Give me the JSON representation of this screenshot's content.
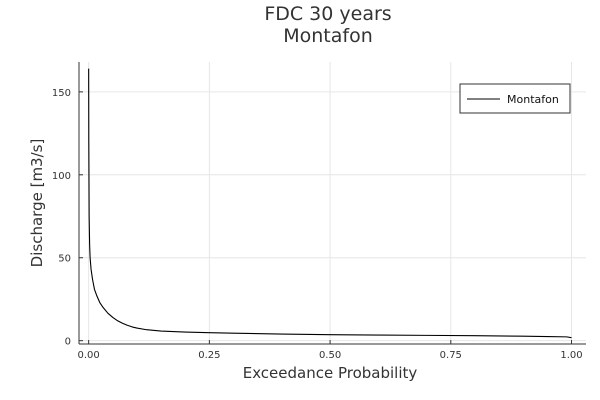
{
  "chart_data": {
    "type": "line",
    "title_lines": [
      "FDC 30 years",
      "Montafon"
    ],
    "xlabel": "Exceedance Probability",
    "ylabel": "Discharge [m3/s]",
    "xlim": [
      -0.02,
      1.03
    ],
    "ylim": [
      -2,
      168
    ],
    "x_ticks": [
      {
        "value": 0,
        "label": "0.00"
      },
      {
        "value": 0.25,
        "label": "0.25"
      },
      {
        "value": 0.5,
        "label": "0.50"
      },
      {
        "value": 0.75,
        "label": "0.75"
      },
      {
        "value": 1,
        "label": "1.00"
      }
    ],
    "y_ticks": [
      {
        "value": 0,
        "label": "0"
      },
      {
        "value": 50,
        "label": "50"
      },
      {
        "value": 100,
        "label": "100"
      },
      {
        "value": 150,
        "label": "150"
      }
    ],
    "grid": true,
    "legend_position": "top-right",
    "series": [
      {
        "name": "Montafon",
        "color": "#000000",
        "x": [
          0.0,
          0.0003,
          0.001,
          0.002,
          0.003,
          0.005,
          0.008,
          0.012,
          0.017,
          0.023,
          0.03,
          0.04,
          0.05,
          0.06,
          0.07,
          0.08,
          0.09,
          0.1,
          0.12,
          0.15,
          0.2,
          0.25,
          0.3,
          0.4,
          0.5,
          0.6,
          0.7,
          0.8,
          0.9,
          0.95,
          0.99,
          1.0
        ],
        "y": [
          164,
          120,
          75,
          58,
          50,
          43,
          37,
          31,
          27,
          23,
          20,
          16.5,
          14,
          12,
          10.5,
          9.3,
          8.3,
          7.6,
          6.6,
          5.8,
          5.2,
          4.8,
          4.5,
          4.0,
          3.6,
          3.4,
          3.2,
          3.0,
          2.7,
          2.5,
          2.3,
          1.8
        ]
      }
    ]
  }
}
